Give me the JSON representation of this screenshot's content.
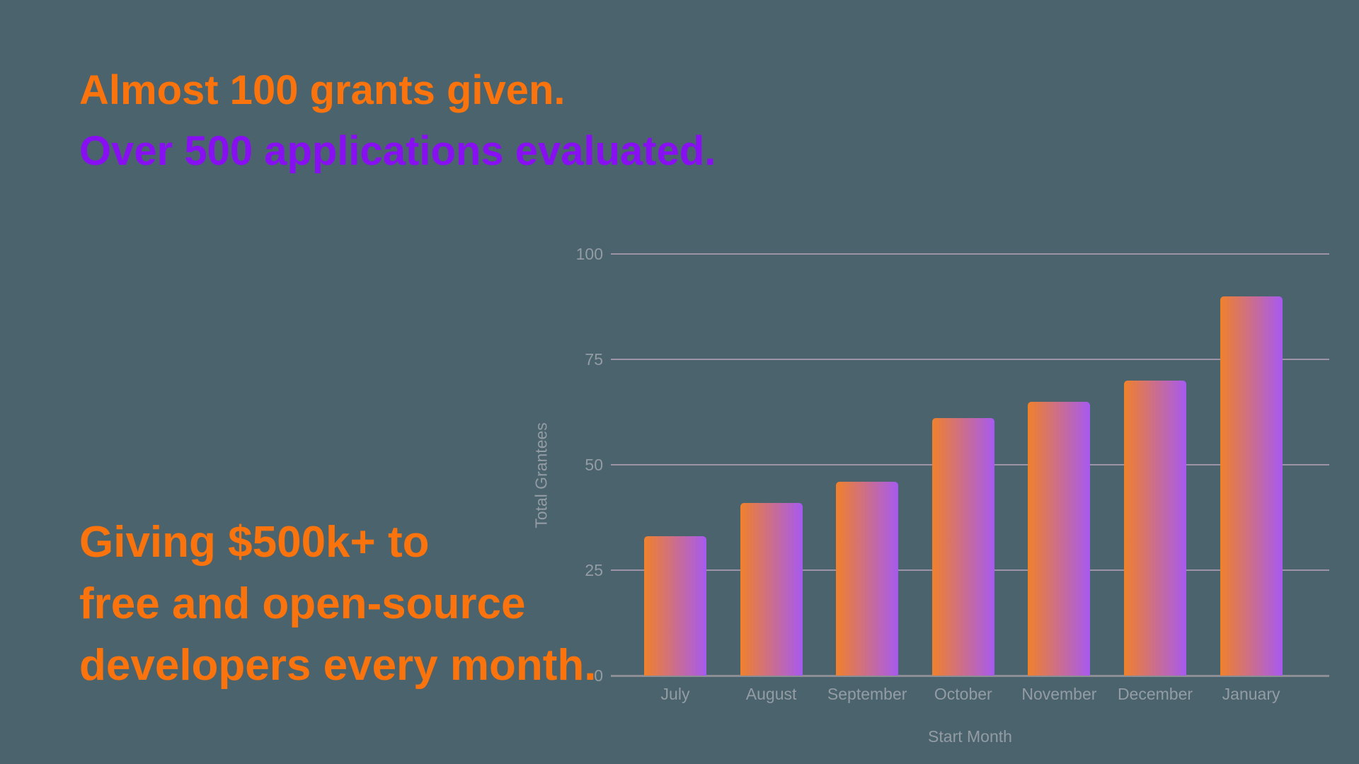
{
  "background": "#4B636D",
  "headline": {
    "line1": "Almost 100 grants given.",
    "line1_color": "#FA730C",
    "line2": "Over 500 applications evaluated.",
    "line2_color": "#880FF2"
  },
  "callout": {
    "color": "#FA730C",
    "lines": [
      "Giving $500k+ to",
      "free and open-source",
      "developers every month."
    ]
  },
  "chart_data": {
    "type": "bar",
    "title": "",
    "categories": [
      "July",
      "August",
      "September",
      "October",
      "November",
      "December",
      "January"
    ],
    "values": [
      33,
      41,
      46,
      61,
      65,
      70,
      90
    ],
    "xlabel": "Start Month",
    "ylabel": "Total Grantees",
    "ylim": [
      0,
      100
    ],
    "yticks": [
      0,
      25,
      50,
      75,
      100
    ],
    "grid": true,
    "legend": false,
    "styles": {
      "bar_gradient_from": "#F0812B",
      "bar_gradient_to": "#A65AF0",
      "gridline_color": "#9C93A6",
      "axis_line_color": "#8D8D95",
      "tick_label_color": "#939CA4"
    }
  }
}
